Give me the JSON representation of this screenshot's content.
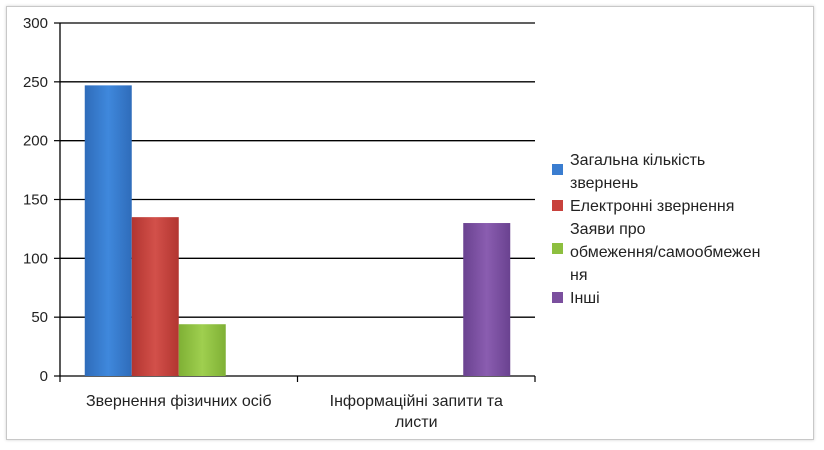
{
  "chart_data": {
    "type": "bar",
    "title": "",
    "xlabel": "",
    "ylabel": "",
    "ylim": [
      0,
      300
    ],
    "yticks": [
      0,
      50,
      100,
      150,
      200,
      250,
      300
    ],
    "grid": true,
    "legend_position": "right",
    "categories": [
      [
        "Звернення фізичних осіб"
      ],
      [
        "Інформаційні запити та",
        "листи"
      ]
    ],
    "series": [
      {
        "name": [
          "Загальна кількість",
          "звернень"
        ],
        "color": "#3a7dd0",
        "values": [
          247,
          null
        ]
      },
      {
        "name": [
          "Електронні звернення"
        ],
        "color": "#c8413c",
        "values": [
          135,
          null
        ]
      },
      {
        "name": [
          "Заяви про",
          "обмеження/самообмежен",
          "ня"
        ],
        "color": "#8dbf3f",
        "values": [
          44,
          null
        ]
      },
      {
        "name": [
          "Інші"
        ],
        "color": "#7b4f9e",
        "values": [
          null,
          130
        ]
      }
    ]
  }
}
